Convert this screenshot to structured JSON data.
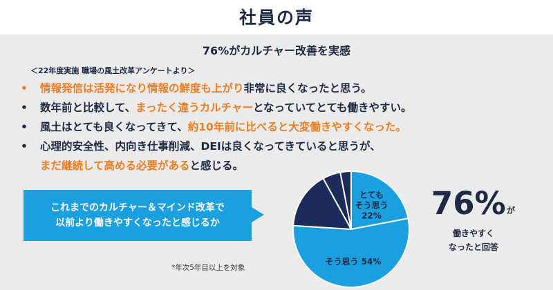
{
  "header": {
    "title": "社員の声"
  },
  "subtitle": "76%がカルチャー改善を実感",
  "survey_note": "＜22年度実施 職場の風土改革アンケートより＞",
  "comments": [
    {
      "parts": [
        {
          "text": "情報発信は活発になり情報の鮮度も上がり",
          "hl": true
        },
        {
          "text": "非常に良くなったと思う。",
          "hl": false
        }
      ],
      "bullet_color": "orange"
    },
    {
      "parts": [
        {
          "text": "数年前と比較して、",
          "hl": false
        },
        {
          "text": "まったく違うカルチャー",
          "hl": true
        },
        {
          "text": "となっていてとても働きやすい。",
          "hl": false
        }
      ],
      "bullet_color": "navy"
    },
    {
      "parts": [
        {
          "text": "風土はとても良くなってきて、",
          "hl": false
        },
        {
          "text": "約10年前に比べると大変働きやすくなった。",
          "hl": true
        }
      ],
      "bullet_color": "navy"
    },
    {
      "parts": [
        {
          "text": "心理的安全性、内向き仕事削減、DEIは良くなってきていると思うが、",
          "hl": false
        }
      ],
      "bullet_color": "navy"
    }
  ],
  "comment_continuation": [
    {
      "text": "まだ継続して高める必要がある",
      "hl": true
    },
    {
      "text": "と感じる。",
      "hl": false
    }
  ],
  "bullet_char": "•",
  "question": {
    "line1": "これまでのカルチャー＆マインド改革で",
    "line2": "以前より働きやすくなったと感じるか"
  },
  "footnote": "*年次5年目以上を対象",
  "chart_data": {
    "type": "pie",
    "question": "これまでのカルチャー＆マインド改革で以前より働きやすくなったと感じるか",
    "slices": [
      {
        "label": "とてもそう思う",
        "value": 22,
        "display_lines": [
          "とても",
          "そう思う",
          "22%"
        ],
        "color": "#1a9fe0"
      },
      {
        "label": "そう思う",
        "value": 54,
        "display_lines": [
          "そう思う 54%"
        ],
        "color": "#1a9fe0"
      },
      {
        "label": "",
        "value": 16,
        "display_lines": [],
        "color": "#1b2c5a"
      },
      {
        "label": "",
        "value": 5,
        "display_lines": [],
        "color": "#1b2c5a"
      },
      {
        "label": "",
        "value": 3,
        "display_lines": [],
        "color": "#1b2c5a"
      }
    ]
  },
  "result": {
    "big": "76%",
    "suffix": "が",
    "line1": "働きやすく",
    "line2": "なったと回答"
  },
  "colors": {
    "accent_orange": "#ef7d22",
    "navy": "#1e2a44",
    "blue": "#1a9fe0",
    "dark_slice": "#1b2c5a",
    "background": "#ebebeb"
  }
}
